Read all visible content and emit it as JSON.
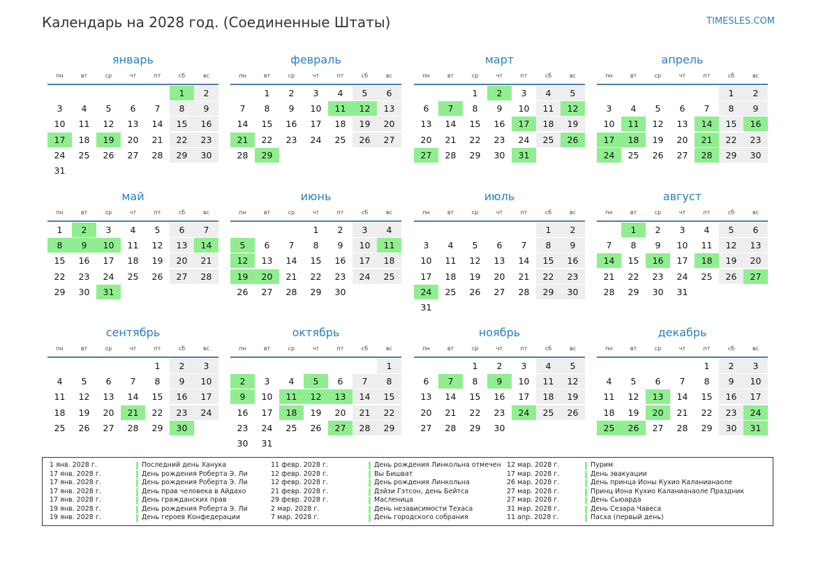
{
  "title": "Календарь на 2028 год. (Соединенные Штаты)",
  "site": "TIMESLES.COM",
  "colors": {
    "accent": "#2b80c0",
    "holiday": "#90ee90",
    "weekend": "#eeeeee",
    "rule": "#4f7aa8"
  },
  "weekdays": [
    "пн",
    "вт",
    "ср",
    "чт",
    "пт",
    "сб",
    "вс"
  ],
  "months": [
    {
      "name": "январь",
      "days": 31,
      "start": 5,
      "holidays": [
        1,
        17,
        19
      ]
    },
    {
      "name": "февраль",
      "days": 29,
      "start": 1,
      "holidays": [
        11,
        12,
        21,
        29
      ]
    },
    {
      "name": "март",
      "days": 31,
      "start": 2,
      "holidays": [
        2,
        7,
        12,
        17,
        26,
        27,
        31
      ]
    },
    {
      "name": "апрель",
      "days": 30,
      "start": 5,
      "holidays": [
        11,
        14,
        16,
        17,
        18,
        21,
        24,
        28
      ]
    },
    {
      "name": "май",
      "days": 31,
      "start": 0,
      "holidays": [
        2,
        8,
        9,
        10,
        14,
        31
      ]
    },
    {
      "name": "июнь",
      "days": 30,
      "start": 3,
      "holidays": [
        5,
        11,
        12,
        19,
        20
      ]
    },
    {
      "name": "июль",
      "days": 31,
      "start": 5,
      "holidays": [
        24
      ]
    },
    {
      "name": "август",
      "days": 31,
      "start": 1,
      "holidays": [
        1,
        14,
        16,
        18,
        27
      ]
    },
    {
      "name": "сентябрь",
      "days": 30,
      "start": 4,
      "holidays": [
        21,
        30
      ]
    },
    {
      "name": "октябрь",
      "days": 31,
      "start": 6,
      "holidays": [
        2,
        5,
        9,
        11,
        12,
        13,
        18,
        27
      ]
    },
    {
      "name": "ноябрь",
      "days": 30,
      "start": 2,
      "holidays": [
        7,
        9,
        24
      ]
    },
    {
      "name": "декабрь",
      "days": 31,
      "start": 4,
      "holidays": [
        13,
        20,
        24,
        25,
        26,
        31
      ]
    }
  ],
  "legend": {
    "columns": [
      [
        {
          "date": "1 янв. 2028 г.",
          "name": "Последний день Ханука"
        },
        {
          "date": "17 янв. 2028 г.",
          "name": "День рождения Роберта Э. Ли"
        },
        {
          "date": "17 янв. 2028 г.",
          "name": "День рождения Роберта Э. Ли"
        },
        {
          "date": "17 янв. 2028 г.",
          "name": "День прав человека в Айдахо"
        },
        {
          "date": "17 янв. 2028 г.",
          "name": "День гражданских прав"
        },
        {
          "date": "19 янв. 2028 г.",
          "name": "День рождения Роберта Э. Ли"
        },
        {
          "date": "19 янв. 2028 г.",
          "name": "День героев Конфедерации"
        }
      ],
      [
        {
          "date": "11 февр. 2028 г.",
          "name": "День рождения Линкольна отмечен"
        },
        {
          "date": "12 февр. 2028 г.",
          "name": "Вы Бишват"
        },
        {
          "date": "12 февр. 2028 г.",
          "name": "День рождения Линкольна"
        },
        {
          "date": "21 февр. 2028 г.",
          "name": "Дэйзи Гэтсон, день Бейтса"
        },
        {
          "date": "29 февр. 2028 г.",
          "name": "Масленица"
        },
        {
          "date": "2 мар. 2028 г.",
          "name": "День независимости Техаса"
        },
        {
          "date": "7 мар. 2028 г.",
          "name": "День городского собрания"
        }
      ],
      [
        {
          "date": "12 мар. 2028 г.",
          "name": "Пурим"
        },
        {
          "date": "17 мар. 2028 г.",
          "name": "День эвакуации"
        },
        {
          "date": "26 мар. 2028 г.",
          "name": "День принца Ионы Кухио Каланианаоле"
        },
        {
          "date": "27 мар. 2028 г.",
          "name": "Принц Иона Кухио Каланианаоле Праздник"
        },
        {
          "date": "27 мар. 2028 г.",
          "name": "День Сьюарда"
        },
        {
          "date": "31 мар. 2028 г.",
          "name": "День Сезара Чавеса"
        },
        {
          "date": "11 апр. 2028 г.",
          "name": "Пасха (первый день)"
        }
      ]
    ]
  }
}
